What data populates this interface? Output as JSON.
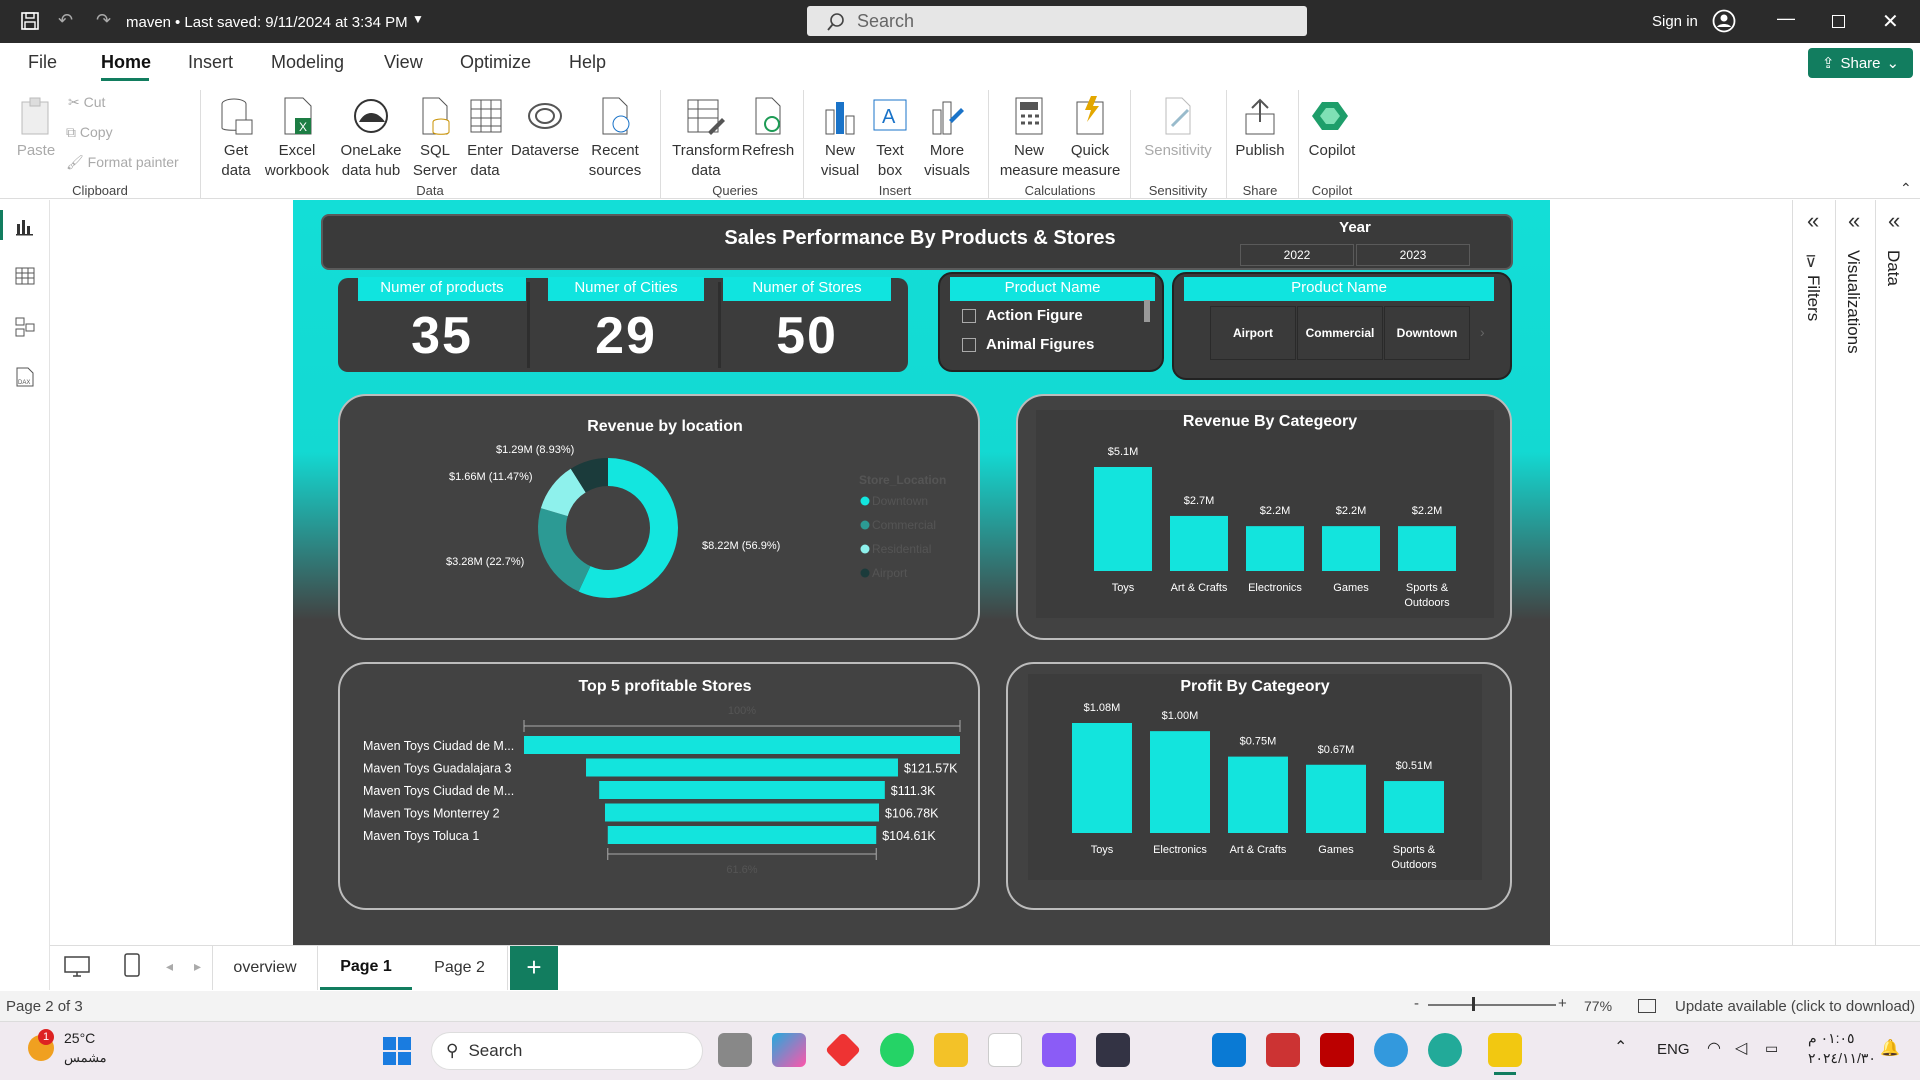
{
  "titlebar": {
    "file": "maven",
    "saved": "• Last saved: 9/11/2024 at 3:34 PM",
    "search": "Search",
    "signin": "Sign in"
  },
  "menu": {
    "items": [
      "File",
      "Home",
      "Insert",
      "Modeling",
      "View",
      "Optimize",
      "Help"
    ],
    "active": "Home",
    "share": "Share"
  },
  "ribbon": {
    "clipboard": {
      "paste": "Paste",
      "cut": "Cut",
      "copy": "Copy",
      "format": "Format painter",
      "group": "Clipboard"
    },
    "data": {
      "get": "Get data",
      "excel": "Excel workbook",
      "onelake": "OneLake data hub",
      "sql": "SQL Server",
      "enter": "Enter data",
      "dataverse": "Dataverse",
      "recent": "Recent sources",
      "group": "Data"
    },
    "queries": {
      "transform": "Transform data",
      "refresh": "Refresh",
      "group": "Queries"
    },
    "insert": {
      "newvisual": "New visual",
      "textbox": "Text box",
      "more": "More visuals",
      "group": "Insert"
    },
    "calc": {
      "newmeasure": "New measure",
      "quick": "Quick measure",
      "group": "Calculations"
    },
    "sens": {
      "label": "Sensitivity",
      "group": "Sensitivity"
    },
    "share": {
      "publish": "Publish",
      "group": "Share"
    },
    "copilot": {
      "label": "Copilot",
      "group": "Copilot"
    }
  },
  "report": {
    "title": "Sales Performance By Products & Stores",
    "year": {
      "label": "Year",
      "values": [
        "2022",
        "2023"
      ]
    },
    "kpis": [
      {
        "label": "Numer of products",
        "value": "35"
      },
      {
        "label": "Numer of Cities",
        "value": "29"
      },
      {
        "label": "Numer of Stores",
        "value": "50"
      }
    ],
    "slicer1": {
      "header": "Product Name",
      "items": [
        "Action Figure",
        "Animal Figures"
      ]
    },
    "slicer2": {
      "header": "Product Name",
      "items": [
        "Airport",
        "Commercial",
        "Downtown"
      ]
    },
    "donut": {
      "title": "Revenue by location",
      "legend_title": "Store_Location",
      "legend": [
        "Downtown",
        "Commercial",
        "Residential",
        "Airport"
      ],
      "labels": [
        "$8.22M (56.9%)",
        "$3.28M (22.7%)",
        "$1.66M (11.47%)",
        "$1.29M (8.93%)"
      ]
    },
    "topstores": {
      "title": "Top 5 profitable Stores",
      "top_label": "100%",
      "bottom_label": "61.6%"
    },
    "revcat": {
      "title": "Revenue By Categeory"
    },
    "profcat": {
      "title": "Profit By Categeory"
    }
  },
  "chart_data": [
    {
      "type": "pie",
      "title": "Revenue by location",
      "categories": [
        "Downtown",
        "Commercial",
        "Residential",
        "Airport"
      ],
      "values": [
        8.22,
        3.28,
        1.66,
        1.29
      ],
      "colors": [
        "#13e6df",
        "#2c9a94",
        "#8ef1ec",
        "#1b3b3b"
      ]
    },
    {
      "type": "bar",
      "title": "Revenue By Categeory",
      "categories": [
        "Toys",
        "Art & Crafts",
        "Electronics",
        "Games",
        "Sports & Outdoors"
      ],
      "values": [
        5.1,
        2.7,
        2.2,
        2.2,
        2.2
      ],
      "labels": [
        "$5.1M",
        "$2.7M",
        "$2.2M",
        "$2.2M",
        "$2.2M"
      ]
    },
    {
      "type": "bar",
      "title": "Top 5 profitable Stores",
      "orientation": "horizontal",
      "categories": [
        "Maven Toys Ciudad de M...",
        "Maven Toys Guadalajara 3",
        "Maven Toys Ciudad de M...",
        "Maven Toys Monterrey 2",
        "Maven Toys Toluca 1"
      ],
      "values": [
        169.9,
        121.57,
        111.3,
        106.78,
        104.61
      ],
      "labels": [
        "",
        "$121.57K",
        "$111.3K",
        "$106.78K",
        "$104.61K"
      ]
    },
    {
      "type": "bar",
      "title": "Profit By Categeory",
      "categories": [
        "Toys",
        "Electronics",
        "Art & Crafts",
        "Games",
        "Sports & Outdoors"
      ],
      "values": [
        1.08,
        1.0,
        0.75,
        0.67,
        0.51
      ],
      "labels": [
        "$1.08M",
        "$1.00M",
        "$0.75M",
        "$0.67M",
        "$0.51M"
      ]
    }
  ],
  "panes": {
    "filters": "Filters",
    "viz": "Visualizations",
    "data": "Data"
  },
  "tabs": {
    "items": [
      "overview",
      "Page 1",
      "Page 2"
    ],
    "active": "Page 1"
  },
  "status": {
    "page": "Page 2 of 3",
    "zoom": "77%",
    "update": "Update available (click to download)"
  },
  "taskbar": {
    "temp": "25°C",
    "weather": "مشمس",
    "search": "Search",
    "lang": "ENG",
    "time": "٠١:٠٥ م",
    "date": "٢٠٢٤/١١/٣٠",
    "badge": "1"
  },
  "colors": {
    "accent": "#13e4dd",
    "dark": "#424242",
    "panel": "#3c3c3c"
  }
}
